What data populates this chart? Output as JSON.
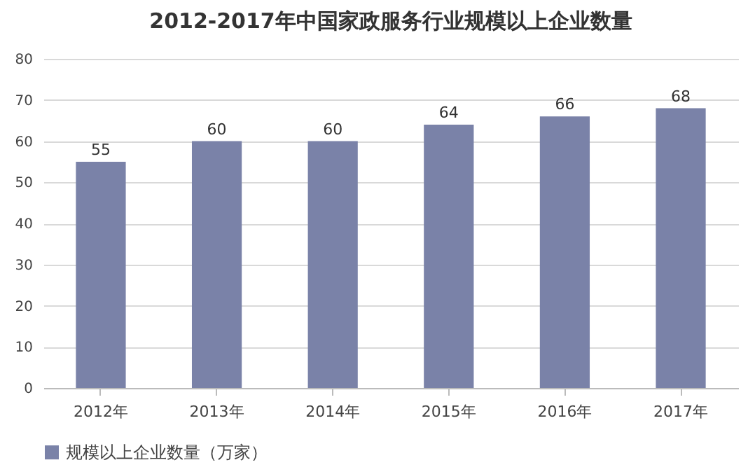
{
  "chart_data": {
    "type": "bar",
    "title": "2012-2017年中国家政服务行业规模以上企业数量",
    "categories": [
      "2012年",
      "2013年",
      "2014年",
      "2015年",
      "2016年",
      "2017年"
    ],
    "series": [
      {
        "name": "规模以上企业数量（万家）",
        "color": "#7a82a8",
        "values": [
          55,
          60,
          60,
          64,
          66,
          68
        ]
      }
    ],
    "ylim": [
      0,
      80
    ],
    "yticks": [
      0,
      10,
      20,
      30,
      40,
      50,
      60,
      70,
      80
    ],
    "grid": "y",
    "legend": "bottom",
    "data_labels": true
  }
}
